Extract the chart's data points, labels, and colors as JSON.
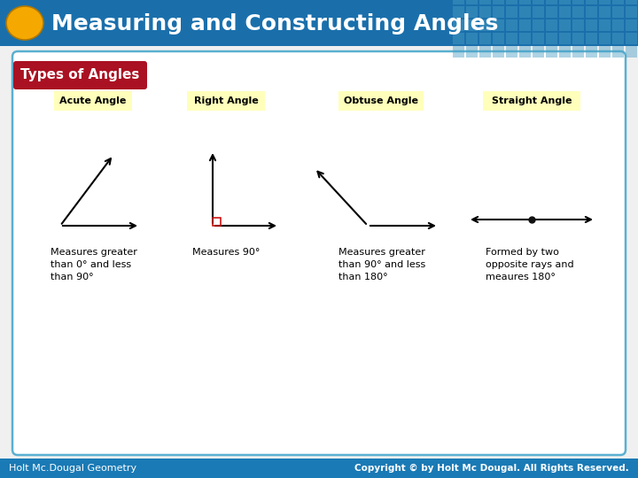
{
  "title": "Measuring and Constructing Angles",
  "title_color": "#ffffff",
  "header_bg_color": "#1a6fab",
  "oval_color": "#f5a800",
  "grid_pattern_color": "#4a9fc4",
  "footer_bg_color": "#1a7ab5",
  "footer_text_left": "Holt Mc.Dougal Geometry",
  "footer_text_right": "Copyright © by Holt Mc Dougal. All Rights Reserved.",
  "footer_color": "#ffffff",
  "card_border": "#5ab0d0",
  "types_label_bg": "#aa1122",
  "types_label_text": "Types of Angles",
  "types_label_color": "#ffffff",
  "angle_types": [
    "Acute Angle",
    "Right Angle",
    "Obtuse Angle",
    "Straight Angle"
  ],
  "angle_label_bg": "#ffffbb",
  "descriptions": [
    "Measures greater\nthan 0° and less\nthan 90°",
    "Measures 90°",
    "Measures greater\nthan 90° and less\nthan 180°",
    "Formed by two\nopposite rays and\nmeaures 180°"
  ],
  "right_angle_box_color": "#cc0000",
  "dot_color": "#111111"
}
